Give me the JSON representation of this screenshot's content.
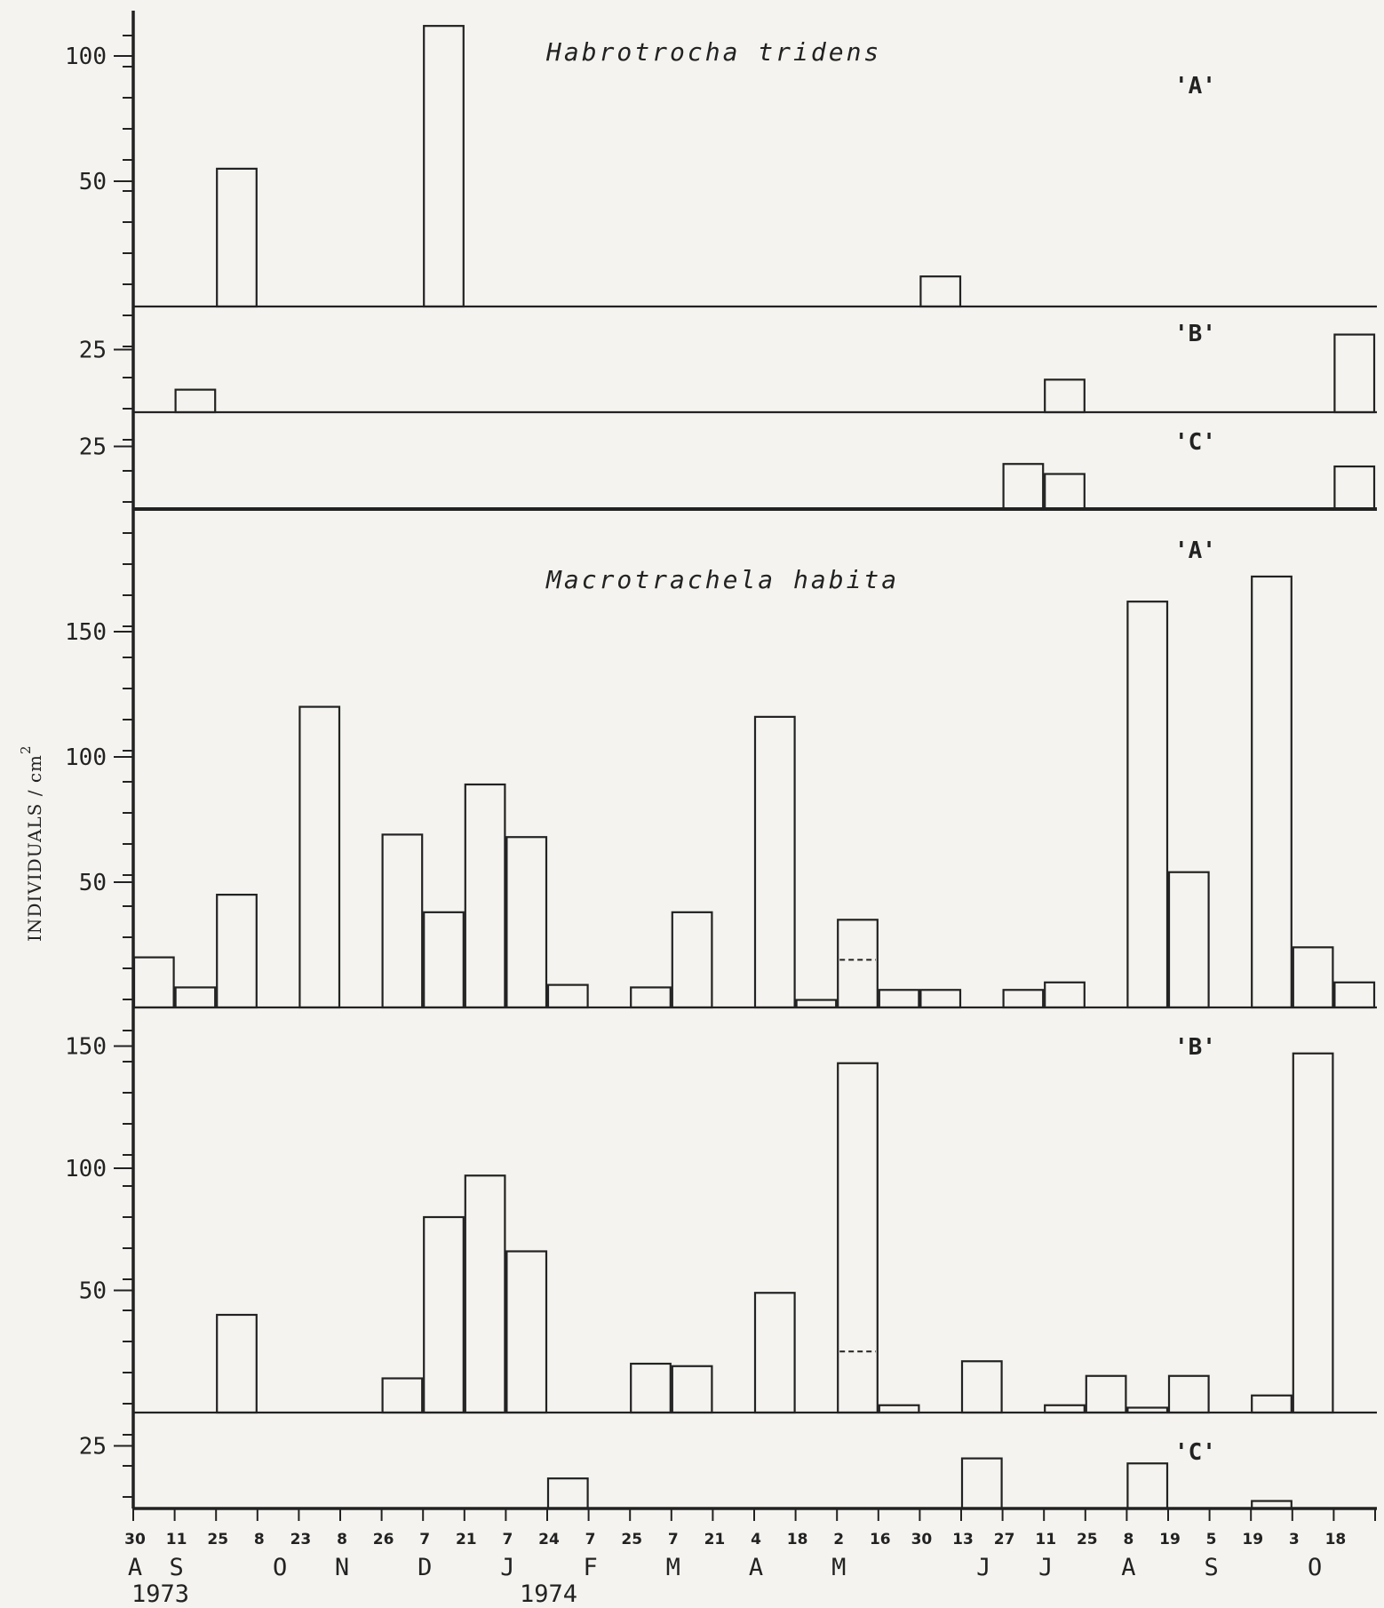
{
  "chart_data": {
    "type": "bar",
    "ylabel": "INDIVIDUALS / cm",
    "ylabel_sup": "2",
    "years": [
      "1973",
      "1974"
    ],
    "dates": [
      "30",
      "11",
      "25",
      "8",
      "23",
      "8",
      "26",
      "7",
      "21",
      "7",
      "24",
      "7",
      "25",
      "7",
      "21",
      "4",
      "18",
      "2",
      "16",
      "30",
      "13",
      "27",
      "11",
      "25",
      "8",
      "19",
      "5",
      "19",
      "3",
      "18"
    ],
    "months": [
      {
        "label": "A",
        "at": 0
      },
      {
        "label": "S",
        "at": 1
      },
      {
        "label": "O",
        "at": 3.5
      },
      {
        "label": "N",
        "at": 5
      },
      {
        "label": "D",
        "at": 7
      },
      {
        "label": "J",
        "at": 9
      },
      {
        "label": "F",
        "at": 11
      },
      {
        "label": "M",
        "at": 13
      },
      {
        "label": "A",
        "at": 15
      },
      {
        "label": "M",
        "at": 17
      },
      {
        "label": "J",
        "at": 20.5
      },
      {
        "label": "J",
        "at": 22
      },
      {
        "label": "A",
        "at": 24
      },
      {
        "label": "S",
        "at": 26
      },
      {
        "label": "O",
        "at": 28.5
      }
    ],
    "species": [
      {
        "name": "Habrotrocha tridens",
        "panels": [
          {
            "label": "'A'",
            "ticks": [
              {
                "v": 100,
                "label": "100"
              },
              {
                "v": 50,
                "label": "50"
              }
            ],
            "bars": [
              {
                "i": 2,
                "v": 55
              },
              {
                "i": 7,
                "v": 112
              },
              {
                "i": 19,
                "v": 12
              }
            ]
          },
          {
            "label": "'B'",
            "ticks": [
              {
                "v": 25,
                "label": "25"
              }
            ],
            "bars": [
              {
                "i": 1,
                "v": 9
              },
              {
                "i": 22,
                "v": 13
              },
              {
                "i": 29,
                "v": 31
              }
            ]
          },
          {
            "label": "'C'",
            "ticks": [
              {
                "v": 25,
                "label": "25"
              }
            ],
            "bars": [
              {
                "i": 21,
                "v": 18
              },
              {
                "i": 22,
                "v": 14
              },
              {
                "i": 29,
                "v": 17
              }
            ]
          }
        ]
      },
      {
        "name": "Macrotrachela habita",
        "panels": [
          {
            "label": "'A'",
            "ticks": [
              {
                "v": 150,
                "label": "150"
              },
              {
                "v": 100,
                "label": "100"
              },
              {
                "v": 50,
                "label": "50"
              }
            ],
            "bars": [
              {
                "i": 0,
                "v": 20
              },
              {
                "i": 1,
                "v": 8
              },
              {
                "i": 2,
                "v": 45
              },
              {
                "i": 4,
                "v": 120
              },
              {
                "i": 6,
                "v": 69
              },
              {
                "i": 7,
                "v": 38
              },
              {
                "i": 8,
                "v": 89
              },
              {
                "i": 9,
                "v": 68
              },
              {
                "i": 10,
                "v": 9
              },
              {
                "i": 12,
                "v": 8
              },
              {
                "i": 13,
                "v": 38
              },
              {
                "i": 15,
                "v": 116
              },
              {
                "i": 16,
                "v": 3
              },
              {
                "i": 17,
                "v": 35,
                "dash": 19
              },
              {
                "i": 18,
                "v": 7
              },
              {
                "i": 19,
                "v": 7
              },
              {
                "i": 21,
                "v": 7
              },
              {
                "i": 22,
                "v": 10
              },
              {
                "i": 24,
                "v": 162
              },
              {
                "i": 25,
                "v": 54
              },
              {
                "i": 27,
                "v": 172
              },
              {
                "i": 28,
                "v": 24
              },
              {
                "i": 29,
                "v": 10
              }
            ]
          },
          {
            "label": "'B'",
            "ticks": [
              {
                "v": 150,
                "label": "150"
              },
              {
                "v": 100,
                "label": "100"
              },
              {
                "v": 50,
                "label": "50"
              }
            ],
            "bars": [
              {
                "i": 2,
                "v": 40
              },
              {
                "i": 6,
                "v": 14
              },
              {
                "i": 7,
                "v": 80
              },
              {
                "i": 8,
                "v": 97
              },
              {
                "i": 9,
                "v": 66
              },
              {
                "i": 12,
                "v": 20
              },
              {
                "i": 13,
                "v": 19
              },
              {
                "i": 15,
                "v": 49
              },
              {
                "i": 17,
                "v": 143,
                "dash": 25
              },
              {
                "i": 18,
                "v": 3
              },
              {
                "i": 20,
                "v": 21
              },
              {
                "i": 22,
                "v": 3
              },
              {
                "i": 23,
                "v": 15
              },
              {
                "i": 24,
                "v": 2
              },
              {
                "i": 25,
                "v": 15
              },
              {
                "i": 27,
                "v": 7
              },
              {
                "i": 28,
                "v": 147
              }
            ]
          },
          {
            "label": "'C'",
            "ticks": [
              {
                "v": 25,
                "label": "25"
              }
            ],
            "bars": [
              {
                "i": 10,
                "v": 12
              },
              {
                "i": 20,
                "v": 20
              },
              {
                "i": 24,
                "v": 18
              },
              {
                "i": 27,
                "v": 3
              }
            ]
          }
        ]
      }
    ]
  }
}
